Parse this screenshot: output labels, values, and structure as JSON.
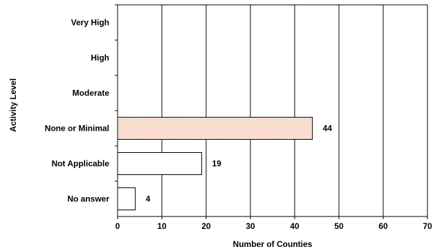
{
  "chart_data": {
    "type": "bar",
    "orientation": "horizontal",
    "categories": [
      "Very High",
      "High",
      "Moderate",
      "None or Minimal",
      "Not Applicable",
      "No answer"
    ],
    "values": [
      null,
      null,
      null,
      44,
      19,
      4
    ],
    "data_labels": [
      "",
      "",
      "",
      "44",
      "19",
      "4"
    ],
    "highlight_category": "None or Minimal",
    "xlabel": "Number of Counties",
    "ylabel": "Activity Level",
    "xlim": [
      0,
      70
    ],
    "xticks": [
      0,
      10,
      20,
      30,
      40,
      50,
      60,
      70
    ],
    "grid": "vertical",
    "legend": "none",
    "colors": {
      "bar_fill": "#ffffff",
      "bar_stroke": "#000000",
      "highlight_fill": "#fde3d6",
      "highlight_dot": "#e3a98c",
      "grid": "#000000"
    }
  }
}
